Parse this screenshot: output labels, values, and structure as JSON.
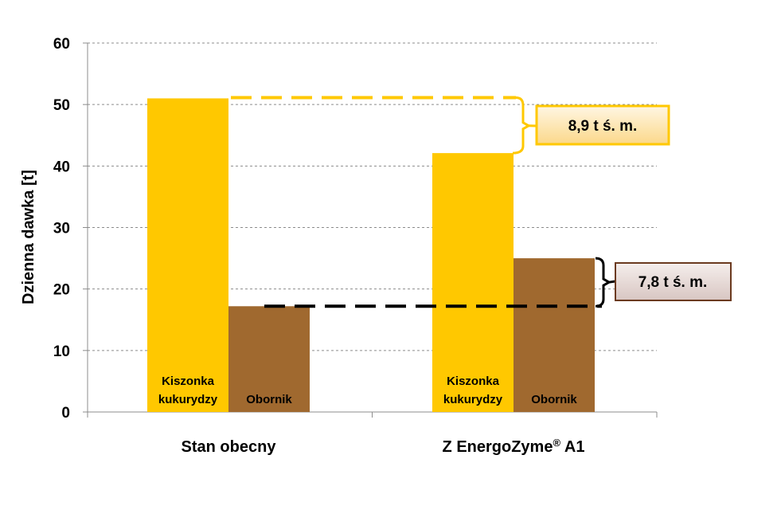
{
  "chart_data": {
    "type": "bar",
    "categories": [
      "Stan obecny",
      "Z EnergoZyme® A1"
    ],
    "series": [
      {
        "color": "#FFC800",
        "values": [
          51,
          42.1
        ]
      },
      {
        "color": "#A0692F",
        "values": [
          17.2,
          25
        ]
      }
    ],
    "bar_labels": [
      [
        "Kiszonka kukurydzy",
        "Obornik"
      ],
      [
        "Kiszonka kukurydzy",
        "Obornik"
      ]
    ],
    "ylabel": "Dzienna dawka [t]",
    "xlabel": "",
    "ylim": [
      0,
      60
    ],
    "yticks": [
      0,
      10,
      20,
      30,
      40,
      50,
      60
    ],
    "grid": true,
    "annotations": [
      {
        "text": "8,9 t ś. m.",
        "from": 51,
        "to": 42.1,
        "color": "#FFC800",
        "fill": "#FDEBC0"
      },
      {
        "text": "7,8 t ś. m.",
        "from": 25,
        "to": 17.2,
        "color": "#000000",
        "fill": "#E9DCDA",
        "border": "#6B3A1F"
      }
    ]
  }
}
